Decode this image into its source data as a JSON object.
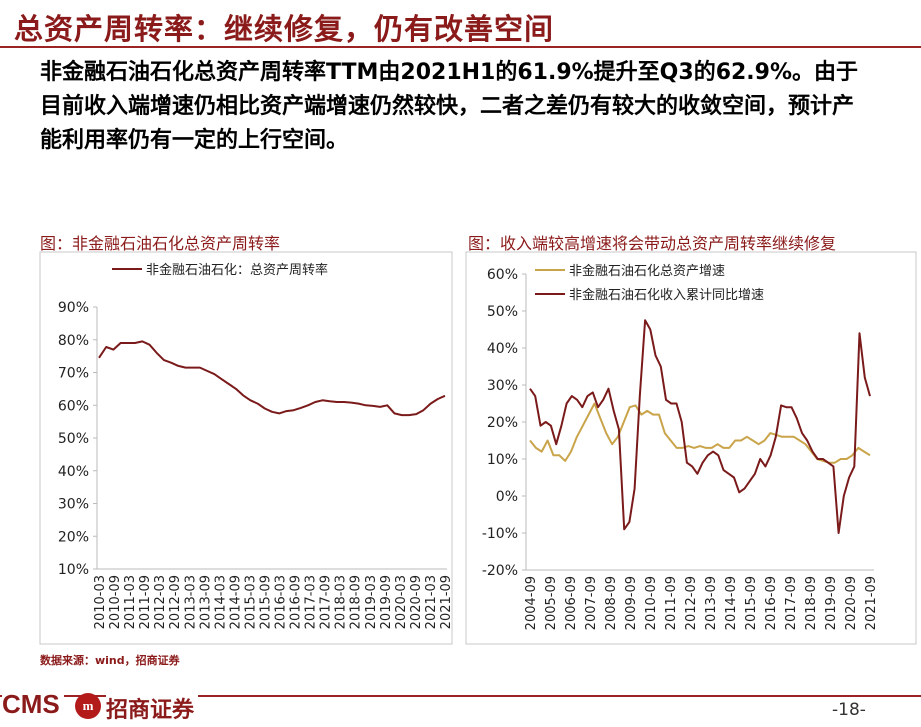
{
  "header": {
    "title": "总资产周转率：继续修复，仍有改善空间",
    "summary": "非金融石油石化总资产周转率TTM由2021H1的61.9%提升至Q3的62.9%。由于目前收入端增速仍相比资产端增速仍然较快，二者之差仍有较大的收敛空间，预计产能利用率仍有一定的上行空间。"
  },
  "colors": {
    "brand": "#8b1a1a",
    "series_dark": "#7a1a1a",
    "series_gold": "#c9a44a"
  },
  "chart_data": [
    {
      "type": "line",
      "title": "图：非金融石油石化总资产周转率",
      "legend_position": "top-left",
      "x_ticks": [
        "2010-03",
        "2010-09",
        "2011-03",
        "2011-09",
        "2012-03",
        "2012-09",
        "2013-03",
        "2013-09",
        "2014-03",
        "2014-09",
        "2015-03",
        "2015-09",
        "2016-03",
        "2016-09",
        "2017-03",
        "2017-09",
        "2018-03",
        "2018-09",
        "2019-03",
        "2019-09",
        "2020-03",
        "2020-09",
        "2021-03",
        "2021-09"
      ],
      "y_ticks": [
        "90%",
        "80%",
        "70%",
        "60%",
        "50%",
        "40%",
        "30%",
        "20%",
        "10%"
      ],
      "ylim": [
        10,
        90
      ],
      "series": [
        {
          "name": "非金融石油石化：总资产周转率",
          "color": "#7a1a1a",
          "values": [
            74.5,
            77.8,
            77.0,
            79.0,
            79.0,
            79.0,
            79.5,
            78.5,
            76.0,
            73.8,
            73.0,
            72.0,
            71.5,
            71.5,
            71.5,
            70.5,
            69.5,
            68.0,
            66.5,
            65.0,
            63.0,
            61.5,
            60.5,
            59.0,
            58.0,
            57.5,
            58.2,
            58.5,
            59.2,
            60.0,
            61.0,
            61.5,
            61.2,
            61.0,
            61.0,
            60.8,
            60.5,
            60.0,
            59.8,
            59.5,
            60.0,
            57.5,
            57.0,
            57.0,
            57.3,
            58.5,
            60.5,
            61.9,
            62.9
          ]
        }
      ]
    },
    {
      "type": "line",
      "title": "图：收入端较高增速将会带动总资产周转率继续修复",
      "legend_position": "top-left",
      "x_ticks": [
        "2004-09",
        "2005-09",
        "2006-09",
        "2007-09",
        "2008-09",
        "2009-09",
        "2010-09",
        "2011-09",
        "2012-09",
        "2013-09",
        "2014-09",
        "2015-09",
        "2016-09",
        "2017-09",
        "2018-09",
        "2019-09",
        "2020-09",
        "2021-09"
      ],
      "y_ticks": [
        "60%",
        "50%",
        "40%",
        "30%",
        "20%",
        "10%",
        "0%",
        "-10%",
        "-20%"
      ],
      "ylim": [
        -20,
        60
      ],
      "series": [
        {
          "name": "非金融石油石化总资产增速",
          "color": "#c9a44a",
          "values": [
            15,
            13,
            12,
            15,
            11,
            11,
            9.5,
            12,
            16,
            19,
            22,
            25,
            21,
            17,
            14,
            16,
            20,
            24,
            24.5,
            22,
            23,
            22,
            22,
            17,
            15,
            13,
            13,
            13.5,
            13,
            13.5,
            13,
            13,
            14,
            13,
            13,
            15,
            15,
            16,
            15,
            14,
            15,
            17,
            16.5,
            16,
            16,
            16,
            15,
            14,
            12,
            10,
            9.5,
            9,
            9,
            10,
            10,
            11,
            13,
            12,
            11
          ]
        },
        {
          "name": "非金融石油石化收入累计同比增速",
          "color": "#7a1a1a",
          "values": [
            29,
            27,
            19,
            20,
            19,
            14,
            19,
            25,
            27,
            26,
            24,
            27,
            28,
            24,
            26,
            29,
            23,
            18,
            -9,
            -7,
            2,
            27,
            47.5,
            45,
            38,
            35,
            26,
            25,
            25,
            20,
            9,
            8,
            6,
            9,
            11,
            12,
            11,
            7,
            6,
            5,
            1,
            2,
            4,
            6,
            10,
            8,
            11,
            16,
            24.5,
            24,
            24,
            21,
            17,
            15,
            12,
            10,
            10,
            9,
            8,
            -10,
            0,
            5,
            8,
            44,
            32,
            27
          ]
        }
      ]
    }
  ],
  "source": "数据来源：wind，招商证券",
  "footer": {
    "brand_short": "CMS",
    "badge_text": "m",
    "brand_name": "招商证券",
    "page_number": "-18-"
  }
}
